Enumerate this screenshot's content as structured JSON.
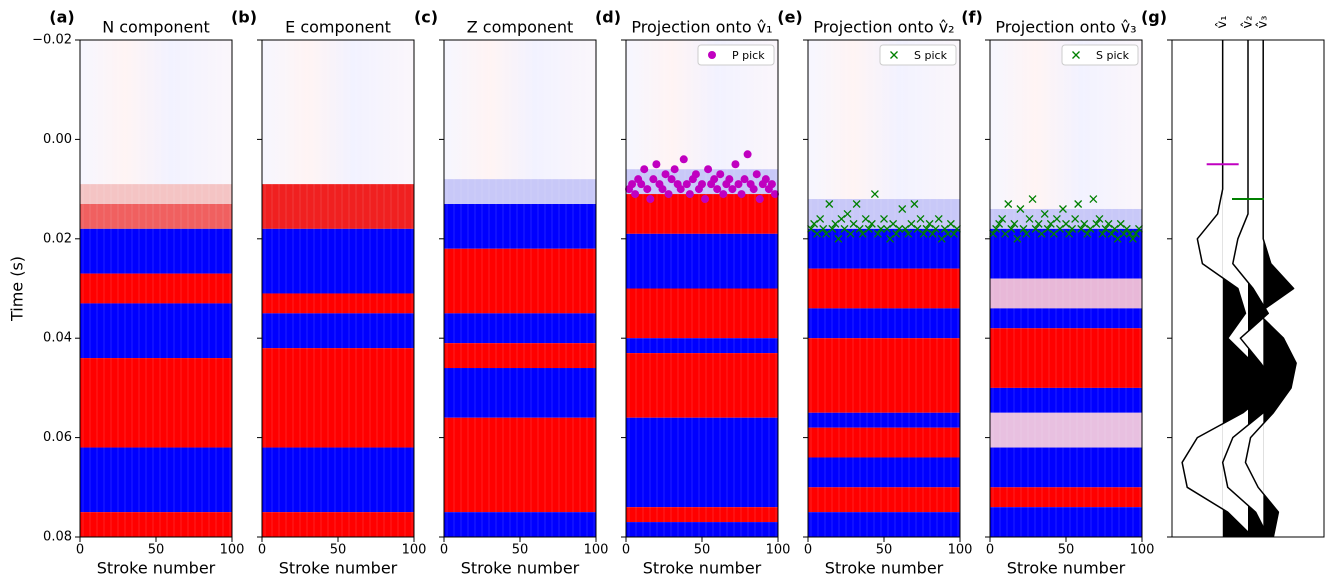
{
  "chart_data": [
    {
      "type": "heatmap",
      "label": "(a)",
      "title": "N component",
      "xlabel": "Stroke number",
      "ylabel": "Time (s)",
      "xlim": [
        0,
        100
      ],
      "xticks": [
        0,
        50,
        100
      ],
      "ylim": [
        -0.02,
        0.08
      ],
      "y_inverted": true,
      "yticks": [
        {
          "value": -0.02,
          "label": "−0.02"
        },
        {
          "value": 0,
          "label": "0.00"
        },
        0.02,
        0.04,
        0.06,
        0.08
      ],
      "bands": [
        {
          "start": 0.009,
          "end": 0.013,
          "color": "#f4c4c4"
        },
        {
          "start": 0.013,
          "end": 0.018,
          "color": "#f06060"
        },
        {
          "start": 0.018,
          "end": 0.027,
          "color": "#0000ff"
        },
        {
          "start": 0.027,
          "end": 0.033,
          "color": "#ff0000"
        },
        {
          "start": 0.033,
          "end": 0.044,
          "color": "#0000ff"
        },
        {
          "start": 0.044,
          "end": 0.062,
          "color": "#ff0000"
        },
        {
          "start": 0.062,
          "end": 0.075,
          "color": "#0000ff"
        },
        {
          "start": 0.075,
          "end": 0.08,
          "color": "#ff0000"
        }
      ]
    },
    {
      "type": "heatmap",
      "label": "(b)",
      "title": "E component",
      "xlabel": "Stroke number",
      "xlim": [
        0,
        100
      ],
      "xticks": [
        0,
        50,
        100
      ],
      "bands": [
        {
          "start": 0.009,
          "end": 0.018,
          "color": "#f02020"
        },
        {
          "start": 0.018,
          "end": 0.031,
          "color": "#0000ff"
        },
        {
          "start": 0.031,
          "end": 0.035,
          "color": "#ff0000"
        },
        {
          "start": 0.035,
          "end": 0.042,
          "color": "#0000ff"
        },
        {
          "start": 0.042,
          "end": 0.062,
          "color": "#ff0000"
        },
        {
          "start": 0.062,
          "end": 0.075,
          "color": "#0000ff"
        },
        {
          "start": 0.075,
          "end": 0.08,
          "color": "#ff0000"
        }
      ]
    },
    {
      "type": "heatmap",
      "label": "(c)",
      "title": "Z component",
      "xlabel": "Stroke number",
      "xlim": [
        0,
        100
      ],
      "xticks": [
        0,
        50,
        100
      ],
      "bands": [
        {
          "start": 0.008,
          "end": 0.013,
          "color": "#c8c8f8"
        },
        {
          "start": 0.013,
          "end": 0.022,
          "color": "#0000ff"
        },
        {
          "start": 0.022,
          "end": 0.035,
          "color": "#ff0000"
        },
        {
          "start": 0.035,
          "end": 0.041,
          "color": "#0000ff"
        },
        {
          "start": 0.041,
          "end": 0.046,
          "color": "#ff0000"
        },
        {
          "start": 0.046,
          "end": 0.056,
          "color": "#0000ff"
        },
        {
          "start": 0.056,
          "end": 0.075,
          "color": "#ff0000"
        },
        {
          "start": 0.075,
          "end": 0.08,
          "color": "#0000ff"
        }
      ]
    },
    {
      "type": "heatmap",
      "label": "(d)",
      "title": "Projection onto v̂₁",
      "xlabel": "Stroke number",
      "xlim": [
        0,
        100
      ],
      "xticks": [
        0,
        50,
        100
      ],
      "legend": "upper right",
      "bands": [
        {
          "start": 0.006,
          "end": 0.011,
          "color": "#c8c8f8"
        },
        {
          "start": 0.011,
          "end": 0.019,
          "color": "#ff0000"
        },
        {
          "start": 0.019,
          "end": 0.03,
          "color": "#0000ff"
        },
        {
          "start": 0.03,
          "end": 0.04,
          "color": "#ff0000"
        },
        {
          "start": 0.04,
          "end": 0.043,
          "color": "#0000ff"
        },
        {
          "start": 0.043,
          "end": 0.056,
          "color": "#ff0000"
        },
        {
          "start": 0.056,
          "end": 0.074,
          "color": "#0000ff"
        },
        {
          "start": 0.074,
          "end": 0.077,
          "color": "#ff0000"
        },
        {
          "start": 0.077,
          "end": 0.08,
          "color": "#0000ff"
        }
      ],
      "series": [
        {
          "name": "P pick",
          "color": "#c000c0",
          "marker": "circle",
          "x": [
            2,
            4,
            6,
            8,
            10,
            12,
            14,
            16,
            18,
            20,
            22,
            24,
            26,
            28,
            30,
            32,
            34,
            36,
            38,
            40,
            42,
            44,
            46,
            48,
            50,
            52,
            54,
            56,
            58,
            60,
            62,
            64,
            66,
            68,
            70,
            72,
            74,
            76,
            78,
            80,
            82,
            84,
            86,
            88,
            90,
            92,
            94,
            96,
            98
          ],
          "values": [
            0.01,
            0.009,
            0.011,
            0.008,
            0.009,
            0.006,
            0.01,
            0.012,
            0.008,
            0.005,
            0.009,
            0.01,
            0.007,
            0.011,
            0.008,
            0.006,
            0.009,
            0.01,
            0.004,
            0.009,
            0.011,
            0.008,
            0.007,
            0.01,
            0.009,
            0.012,
            0.006,
            0.009,
            0.008,
            0.01,
            0.007,
            0.011,
            0.009,
            0.008,
            0.01,
            0.005,
            0.009,
            0.011,
            0.008,
            0.003,
            0.009,
            0.01,
            0.007,
            0.012,
            0.009,
            0.008,
            0.01,
            0.009,
            0.011
          ]
        }
      ]
    },
    {
      "type": "heatmap",
      "label": "(e)",
      "title": "Projection onto v̂₂",
      "xlabel": "Stroke number",
      "xlim": [
        0,
        100
      ],
      "xticks": [
        0,
        50,
        100
      ],
      "legend": "upper right",
      "bands": [
        {
          "start": 0.012,
          "end": 0.018,
          "color": "#c8c8f8"
        },
        {
          "start": 0.018,
          "end": 0.026,
          "color": "#0000ff"
        },
        {
          "start": 0.026,
          "end": 0.034,
          "color": "#ff0000"
        },
        {
          "start": 0.034,
          "end": 0.04,
          "color": "#0000ff"
        },
        {
          "start": 0.04,
          "end": 0.055,
          "color": "#ff0000"
        },
        {
          "start": 0.055,
          "end": 0.058,
          "color": "#0000ff"
        },
        {
          "start": 0.058,
          "end": 0.064,
          "color": "#ff0000"
        },
        {
          "start": 0.064,
          "end": 0.07,
          "color": "#0000ff"
        },
        {
          "start": 0.07,
          "end": 0.075,
          "color": "#ff0000"
        },
        {
          "start": 0.075,
          "end": 0.08,
          "color": "#0000ff"
        }
      ],
      "series": [
        {
          "name": "S pick",
          "color": "#008000",
          "marker": "x",
          "x": [
            2,
            4,
            6,
            8,
            10,
            12,
            14,
            16,
            18,
            20,
            22,
            24,
            26,
            28,
            30,
            32,
            34,
            36,
            38,
            40,
            42,
            44,
            46,
            48,
            50,
            52,
            54,
            56,
            58,
            60,
            62,
            64,
            66,
            68,
            70,
            72,
            74,
            76,
            78,
            80,
            82,
            84,
            86,
            88,
            90,
            92,
            94,
            96,
            98
          ],
          "values": [
            0.018,
            0.017,
            0.019,
            0.016,
            0.018,
            0.019,
            0.013,
            0.018,
            0.017,
            0.02,
            0.016,
            0.018,
            0.015,
            0.019,
            0.017,
            0.013,
            0.018,
            0.019,
            0.016,
            0.018,
            0.017,
            0.011,
            0.019,
            0.018,
            0.016,
            0.018,
            0.02,
            0.017,
            0.019,
            0.018,
            0.014,
            0.018,
            0.019,
            0.017,
            0.013,
            0.018,
            0.016,
            0.019,
            0.018,
            0.017,
            0.019,
            0.018,
            0.016,
            0.02,
            0.018,
            0.019,
            0.017,
            0.019,
            0.018
          ]
        }
      ]
    },
    {
      "type": "heatmap",
      "label": "(f)",
      "title": "Projection onto v̂₃",
      "xlabel": "Stroke number",
      "xlim": [
        0,
        100
      ],
      "xticks": [
        0,
        50,
        100
      ],
      "legend": "upper right",
      "bands": [
        {
          "start": 0.014,
          "end": 0.018,
          "color": "#c8c8f8"
        },
        {
          "start": 0.018,
          "end": 0.028,
          "color": "#0000ff"
        },
        {
          "start": 0.028,
          "end": 0.034,
          "color": "#e8b8d8"
        },
        {
          "start": 0.034,
          "end": 0.038,
          "color": "#0000ff"
        },
        {
          "start": 0.038,
          "end": 0.05,
          "color": "#ff0000"
        },
        {
          "start": 0.05,
          "end": 0.055,
          "color": "#0000ff"
        },
        {
          "start": 0.055,
          "end": 0.062,
          "color": "#e8c0e0"
        },
        {
          "start": 0.062,
          "end": 0.07,
          "color": "#0000ff"
        },
        {
          "start": 0.07,
          "end": 0.074,
          "color": "#ff0000"
        },
        {
          "start": 0.074,
          "end": 0.08,
          "color": "#0000ff"
        }
      ],
      "series": [
        {
          "name": "S pick",
          "color": "#008000",
          "marker": "x",
          "x": [
            2,
            4,
            6,
            8,
            10,
            12,
            14,
            16,
            18,
            20,
            22,
            24,
            26,
            28,
            30,
            32,
            34,
            36,
            38,
            40,
            42,
            44,
            46,
            48,
            50,
            52,
            54,
            56,
            58,
            60,
            62,
            64,
            66,
            68,
            70,
            72,
            74,
            76,
            78,
            80,
            82,
            84,
            86,
            88,
            90,
            92,
            94,
            96,
            98
          ],
          "values": [
            0.019,
            0.018,
            0.017,
            0.016,
            0.019,
            0.013,
            0.018,
            0.017,
            0.02,
            0.014,
            0.018,
            0.019,
            0.016,
            0.012,
            0.018,
            0.017,
            0.019,
            0.015,
            0.018,
            0.017,
            0.019,
            0.016,
            0.018,
            0.014,
            0.017,
            0.019,
            0.018,
            0.016,
            0.013,
            0.018,
            0.017,
            0.019,
            0.018,
            0.012,
            0.017,
            0.016,
            0.019,
            0.018,
            0.017,
            0.019,
            0.018,
            0.02,
            0.017,
            0.019,
            0.018,
            0.019,
            0.02,
            0.019,
            0.018
          ]
        }
      ]
    },
    {
      "type": "wiggle",
      "label": "(g)",
      "xlim": [
        -2,
        4
      ],
      "x": [
        -0.02,
        -0.015,
        -0.01,
        -0.005,
        0,
        0.005,
        0.01,
        0.015,
        0.02,
        0.025,
        0.03,
        0.035,
        0.04,
        0.045,
        0.05,
        0.055,
        0.06,
        0.065,
        0.07,
        0.075,
        0.08
      ],
      "series": [
        {
          "name": "v̂₁",
          "offset": 0,
          "values": [
            0,
            0,
            0,
            0,
            0,
            0,
            0,
            -0.2,
            -1.0,
            -0.8,
            0.6,
            0.9,
            0.2,
            1.2,
            2.0,
            0.8,
            -1.0,
            -1.6,
            -1.4,
            0.2,
            1.2
          ]
        },
        {
          "name": "v̂₂",
          "offset": 1,
          "values": [
            0,
            0,
            0,
            0,
            0,
            0,
            0,
            0,
            -0.4,
            -0.6,
            0.2,
            0.8,
            -0.3,
            0.5,
            1.2,
            0.6,
            -0.6,
            -1.0,
            -0.8,
            0.3,
            0.8
          ]
        },
        {
          "name": "v̂₃",
          "offset": 1.6,
          "values": [
            0,
            0,
            0,
            0,
            0,
            0,
            0,
            0,
            0,
            0.3,
            1.2,
            -0.2,
            0.8,
            1.3,
            1.1,
            0.4,
            -0.5,
            -0.7,
            -0.2,
            0.6,
            0.4
          ]
        }
      ],
      "picks": [
        {
          "trace": 0,
          "time": 0.005,
          "color": "#c000c0"
        },
        {
          "trace": 1,
          "time": 0.012,
          "color": "#008000"
        }
      ]
    }
  ]
}
